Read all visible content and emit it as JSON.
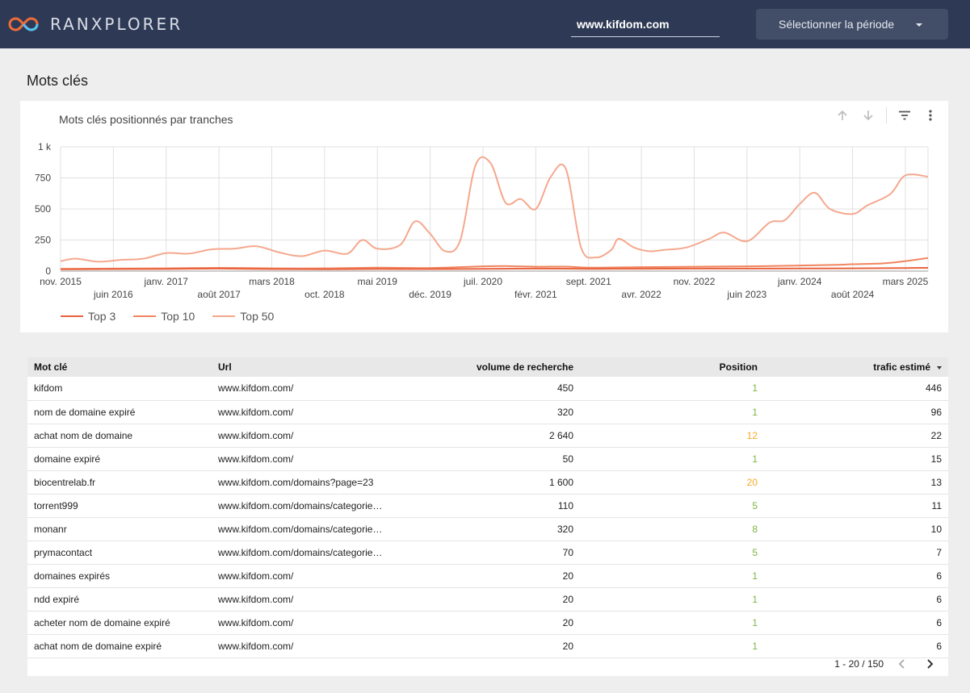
{
  "header": {
    "logo_text": "RANXPLORER",
    "domain_value": "www.kifdom.com",
    "period_label": "Sélectionner la période"
  },
  "section_title": "Mots clés",
  "chart_card": {
    "title": "Mots clés positionnés par tranches"
  },
  "colors": {
    "top3": "#e8623d",
    "top10": "#f08560",
    "top50": "#f5a88e",
    "position_green": "#7cb342",
    "position_orange": "#f9a825"
  },
  "chart_data": {
    "type": "line",
    "title": "Mots clés positionnés par tranches",
    "xlabel": "",
    "ylabel": "",
    "ylim": [
      0,
      1000
    ],
    "y_ticks": [
      "0",
      "250",
      "500",
      "750",
      "1 k"
    ],
    "y_tick_values": [
      0,
      250,
      500,
      750,
      1000
    ],
    "x_range": [
      "2015-11",
      "2025-06"
    ],
    "x_ticks": [
      {
        "date": "2015-11",
        "label": "nov. 2015"
      },
      {
        "date": "2016-06",
        "label": "juin 2016"
      },
      {
        "date": "2017-01",
        "label": "janv. 2017"
      },
      {
        "date": "2017-08",
        "label": "août 2017"
      },
      {
        "date": "2018-03",
        "label": "mars 2018"
      },
      {
        "date": "2018-10",
        "label": "oct. 2018"
      },
      {
        "date": "2019-05",
        "label": "mai 2019"
      },
      {
        "date": "2019-12",
        "label": "déc. 2019"
      },
      {
        "date": "2020-07",
        "label": "juil. 2020"
      },
      {
        "date": "2021-02",
        "label": "févr. 2021"
      },
      {
        "date": "2021-09",
        "label": "sept. 2021"
      },
      {
        "date": "2022-04",
        "label": "avr. 2022"
      },
      {
        "date": "2022-11",
        "label": "nov. 2022"
      },
      {
        "date": "2023-06",
        "label": "juin 2023"
      },
      {
        "date": "2024-01",
        "label": "janv. 2024"
      },
      {
        "date": "2024-08",
        "label": "août 2024"
      },
      {
        "date": "2025-03",
        "label": "mars 2025"
      }
    ],
    "grid": true,
    "legend_position": "bottom-left",
    "series": [
      {
        "name": "Top 3",
        "points": [
          [
            "2015-11",
            15
          ],
          [
            "2016-06",
            16
          ],
          [
            "2017-01",
            17
          ],
          [
            "2017-08",
            20
          ],
          [
            "2018-03",
            16
          ],
          [
            "2018-10",
            15
          ],
          [
            "2019-05",
            17
          ],
          [
            "2019-12",
            16
          ],
          [
            "2020-07",
            18
          ],
          [
            "2021-02",
            20
          ],
          [
            "2021-09",
            18
          ],
          [
            "2022-04",
            19
          ],
          [
            "2022-11",
            20
          ],
          [
            "2023-06",
            20
          ],
          [
            "2024-01",
            21
          ],
          [
            "2024-08",
            22
          ],
          [
            "2025-03",
            24
          ],
          [
            "2025-06",
            26
          ]
        ]
      },
      {
        "name": "Top 10",
        "points": [
          [
            "2015-11",
            18
          ],
          [
            "2016-06",
            20
          ],
          [
            "2017-01",
            22
          ],
          [
            "2017-08",
            26
          ],
          [
            "2018-03",
            22
          ],
          [
            "2018-10",
            22
          ],
          [
            "2019-05",
            28
          ],
          [
            "2019-12",
            25
          ],
          [
            "2020-07",
            38
          ],
          [
            "2020-10",
            40
          ],
          [
            "2021-02",
            35
          ],
          [
            "2021-06",
            36
          ],
          [
            "2021-09",
            28
          ],
          [
            "2022-04",
            32
          ],
          [
            "2022-11",
            35
          ],
          [
            "2023-06",
            38
          ],
          [
            "2024-01",
            45
          ],
          [
            "2024-06",
            50
          ],
          [
            "2024-08",
            55
          ],
          [
            "2024-12",
            62
          ],
          [
            "2025-03",
            80
          ],
          [
            "2025-06",
            105
          ]
        ]
      },
      {
        "name": "Top 50",
        "points": [
          [
            "2015-11",
            80
          ],
          [
            "2016-01",
            100
          ],
          [
            "2016-04",
            75
          ],
          [
            "2016-07",
            90
          ],
          [
            "2016-10",
            100
          ],
          [
            "2017-01",
            145
          ],
          [
            "2017-04",
            140
          ],
          [
            "2017-07",
            175
          ],
          [
            "2017-10",
            180
          ],
          [
            "2018-01",
            200
          ],
          [
            "2018-04",
            150
          ],
          [
            "2018-07",
            120
          ],
          [
            "2018-10",
            165
          ],
          [
            "2019-01",
            140
          ],
          [
            "2019-03",
            250
          ],
          [
            "2019-05",
            180
          ],
          [
            "2019-08",
            210
          ],
          [
            "2019-10",
            400
          ],
          [
            "2019-12",
            300
          ],
          [
            "2020-02",
            160
          ],
          [
            "2020-04",
            250
          ],
          [
            "2020-06",
            850
          ],
          [
            "2020-08",
            870
          ],
          [
            "2020-10",
            550
          ],
          [
            "2020-12",
            580
          ],
          [
            "2021-02",
            500
          ],
          [
            "2021-04",
            760
          ],
          [
            "2021-06",
            820
          ],
          [
            "2021-08",
            190
          ],
          [
            "2021-10",
            110
          ],
          [
            "2021-12",
            170
          ],
          [
            "2022-01",
            260
          ],
          [
            "2022-03",
            190
          ],
          [
            "2022-05",
            160
          ],
          [
            "2022-07",
            170
          ],
          [
            "2022-10",
            190
          ],
          [
            "2023-01",
            260
          ],
          [
            "2023-03",
            310
          ],
          [
            "2023-06",
            240
          ],
          [
            "2023-09",
            390
          ],
          [
            "2023-11",
            410
          ],
          [
            "2024-01",
            540
          ],
          [
            "2024-03",
            630
          ],
          [
            "2024-05",
            500
          ],
          [
            "2024-08",
            460
          ],
          [
            "2024-10",
            530
          ],
          [
            "2025-01",
            620
          ],
          [
            "2025-03",
            770
          ],
          [
            "2025-06",
            760
          ]
        ]
      }
    ]
  },
  "table": {
    "columns": [
      "Mot clé",
      "Url",
      "volume de recherche",
      "Position",
      "trafic estimé"
    ],
    "rows": [
      [
        "kifdom",
        "www.kifdom.com/",
        "450",
        "1",
        "446"
      ],
      [
        "nom de domaine expiré",
        "www.kifdom.com/",
        "320",
        "1",
        "96"
      ],
      [
        "achat nom de domaine",
        "www.kifdom.com/",
        "2 640",
        "12",
        "22"
      ],
      [
        "domaine expiré",
        "www.kifdom.com/",
        "50",
        "1",
        "15"
      ],
      [
        "biocentrelab.fr",
        "www.kifdom.com/domains?page=23",
        "1 600",
        "20",
        "13"
      ],
      [
        "torrent999",
        "www.kifdom.com/domains/categorie…",
        "110",
        "5",
        "11"
      ],
      [
        "monanr",
        "www.kifdom.com/domains/categorie…",
        "320",
        "8",
        "10"
      ],
      [
        "prymacontact",
        "www.kifdom.com/domains/categorie…",
        "70",
        "5",
        "7"
      ],
      [
        "domaines expirés",
        "www.kifdom.com/",
        "20",
        "1",
        "6"
      ],
      [
        "ndd expiré",
        "www.kifdom.com/",
        "20",
        "1",
        "6"
      ],
      [
        "acheter nom de domaine expiré",
        "www.kifdom.com/",
        "20",
        "1",
        "6"
      ],
      [
        "achat nom de domaine expiré",
        "www.kifdom.com/",
        "20",
        "1",
        "6"
      ]
    ],
    "pagination": "1 - 20 / 150"
  },
  "icons": {
    "logo": "infinity-logo-icon",
    "sort_up": "arrow-up-icon",
    "sort_down": "arrow-down-icon",
    "filter": "filter-icon",
    "more": "more-vert-icon",
    "prev": "chevron-left-icon",
    "next": "chevron-right-icon"
  }
}
